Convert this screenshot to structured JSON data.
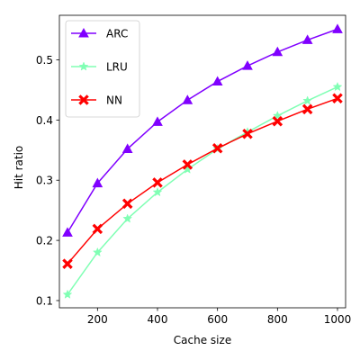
{
  "chart_data": {
    "type": "line",
    "xlabel": "Cache size",
    "ylabel": "Hit ratio",
    "x": [
      100,
      200,
      300,
      400,
      500,
      600,
      700,
      800,
      900,
      1000
    ],
    "xlim": [
      73,
      1027
    ],
    "ylim": [
      0.088,
      0.574
    ],
    "xticks": [
      200,
      400,
      600,
      800,
      1000
    ],
    "yticks": [
      0.1,
      0.2,
      0.3,
      0.4,
      0.5
    ],
    "grid": false,
    "legend_position": "top-left",
    "series": [
      {
        "name": "ARC",
        "color": "#8000ff",
        "marker": "triangle",
        "values": [
          0.213,
          0.295,
          0.352,
          0.397,
          0.433,
          0.464,
          0.49,
          0.513,
          0.533,
          0.551
        ]
      },
      {
        "name": "LRU",
        "color": "#80ffb4",
        "marker": "star",
        "values": [
          0.11,
          0.18,
          0.236,
          0.28,
          0.318,
          0.352,
          0.38,
          0.407,
          0.432,
          0.455
        ]
      },
      {
        "name": "NN",
        "color": "#ff0000",
        "marker": "x",
        "values": [
          0.161,
          0.219,
          0.261,
          0.296,
          0.326,
          0.353,
          0.377,
          0.398,
          0.418,
          0.436
        ]
      }
    ]
  }
}
